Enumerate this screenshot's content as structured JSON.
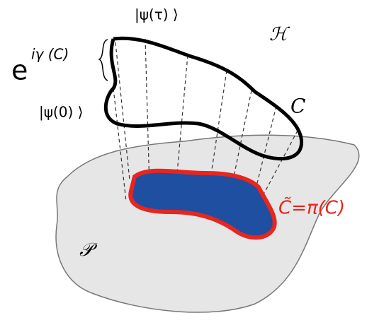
{
  "labels": {
    "psi_tau": "|ψ(τ) ⟩",
    "phase_base": "e",
    "phase_exponent": "iγ (C)",
    "hilbert_space": "ℋ",
    "psi_0": "|ψ(0) ⟩",
    "curve": "C",
    "projected_curve": "C̃=π(C)",
    "projective_space": "𝒫"
  }
}
